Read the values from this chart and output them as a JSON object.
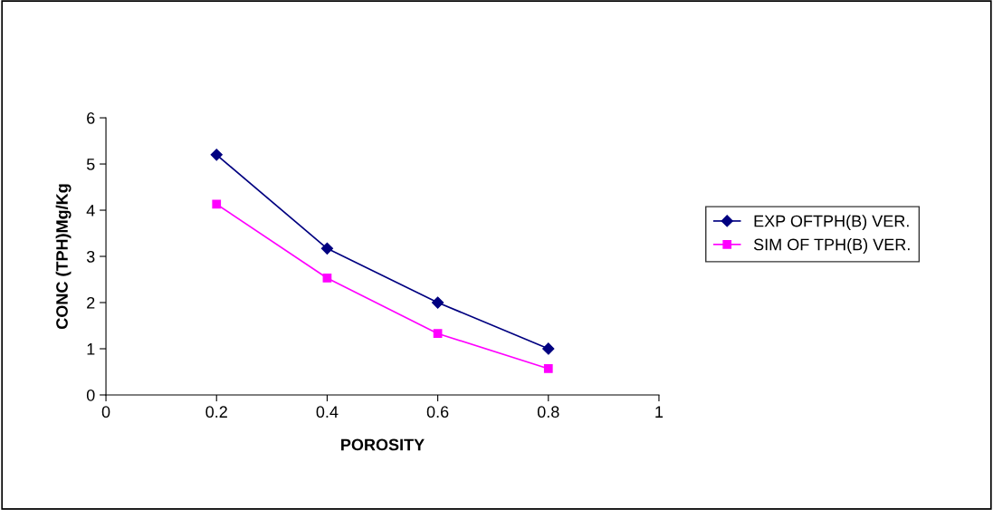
{
  "chart_data": {
    "type": "line",
    "xlabel": "POROSITY",
    "ylabel": "CONC (TPH)Mg/Kg",
    "x": [
      0.2,
      0.4,
      0.6,
      0.8
    ],
    "series": [
      {
        "name": "EXP OFTPH(B) VER.",
        "color": "#000080",
        "marker": "diamond",
        "values": [
          5.2,
          3.17,
          2.0,
          1.0
        ]
      },
      {
        "name": "SIM OF TPH(B) VER.",
        "color": "#ff00ff",
        "marker": "square",
        "values": [
          4.13,
          2.53,
          1.33,
          0.57
        ]
      }
    ],
    "xlim": [
      0,
      1
    ],
    "xticks": [
      0,
      0.2,
      0.4,
      0.6,
      0.8,
      1
    ],
    "ylim": [
      0,
      6
    ],
    "yticks": [
      0,
      1,
      2,
      3,
      4,
      5,
      6
    ],
    "grid": false,
    "legend": "right",
    "line_style": "solid"
  }
}
